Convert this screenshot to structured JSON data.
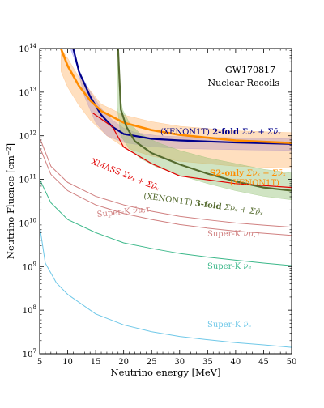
{
  "chart_data": {
    "type": "line",
    "title": "",
    "xlabel": "Neutrino energy [MeV]",
    "ylabel": "Neutrino Fluence [cm⁻²]",
    "xlim": [
      5,
      50
    ],
    "ylim": [
      10000000.0,
      100000000000000.0
    ],
    "yscale": "log",
    "grid": false,
    "x_ticks": [
      "5",
      "10",
      "15",
      "20",
      "25",
      "30",
      "35",
      "40",
      "45",
      "50"
    ],
    "y_ticks": [
      {
        "base": "10",
        "exp": "7"
      },
      {
        "base": "10",
        "exp": "8"
      },
      {
        "base": "10",
        "exp": "9"
      },
      {
        "base": "10",
        "exp": "10"
      },
      {
        "base": "10",
        "exp": "11"
      },
      {
        "base": "10",
        "exp": "12"
      },
      {
        "base": "10",
        "exp": "13"
      },
      {
        "base": "10",
        "exp": "14"
      }
    ],
    "annotation_title": [
      "GW170817",
      "Nuclear Recoils"
    ],
    "bands": [
      {
        "color": "#8080ff",
        "upper": [
          [
            10.5,
            100000000000000.0
          ],
          [
            12,
            30000000000000.0
          ],
          [
            14,
            10500000000000.0
          ],
          [
            16,
            4200000000000.0
          ],
          [
            18,
            2300000000000.0
          ],
          [
            20,
            1500000000000.0
          ],
          [
            22,
            1200000000000.0
          ],
          [
            26,
            1000000000000.0
          ],
          [
            30,
            950000000000.0
          ],
          [
            40,
            900000000000.0
          ],
          [
            50,
            850000000000.0
          ]
        ],
        "lower": [
          [
            11,
            100000000000000.0
          ],
          [
            12,
            25000000000000.0
          ],
          [
            13,
            8000000000000.0
          ],
          [
            14,
            4000000000000.0
          ],
          [
            15,
            2000000000000.0
          ],
          [
            17,
            1000000000000.0
          ],
          [
            20,
            700000000000.0
          ],
          [
            25,
            560000000000.0
          ],
          [
            30,
            510000000000.0
          ],
          [
            40,
            480000000000.0
          ],
          [
            50,
            460000000000.0
          ]
        ]
      },
      {
        "color": "#ffb366",
        "upper": [
          [
            8.8,
            100000000000000.0
          ],
          [
            10,
            60000000000000.0
          ],
          [
            12,
            22000000000000.0
          ],
          [
            14,
            11000000000000.0
          ],
          [
            16,
            5300000000000.0
          ],
          [
            20,
            3000000000000.0
          ],
          [
            25,
            2100000000000.0
          ],
          [
            30,
            1650000000000.0
          ],
          [
            40,
            1300000000000.0
          ],
          [
            50,
            1180000000000.0
          ]
        ],
        "lower": [
          [
            8.8,
            30000000000000.0
          ],
          [
            10,
            13000000000000.0
          ],
          [
            12,
            5000000000000.0
          ],
          [
            14,
            2300000000000.0
          ],
          [
            17,
            1000000000000.0
          ],
          [
            20,
            550000000000.0
          ],
          [
            25,
            340000000000.0
          ],
          [
            30,
            260000000000.0
          ],
          [
            40,
            200000000000.0
          ],
          [
            50,
            180000000000.0
          ]
        ]
      },
      {
        "color": "#8fbf6f",
        "upper": [
          [
            19,
            100000000000000.0
          ],
          [
            19.3,
            10000000000000.0
          ],
          [
            19.8,
            4000000000000.0
          ],
          [
            21,
            2000000000000.0
          ],
          [
            23,
            1100000000000.0
          ],
          [
            26,
            700000000000.0
          ],
          [
            30,
            460000000000.0
          ],
          [
            35,
            310000000000.0
          ],
          [
            40,
            230000000000.0
          ],
          [
            45,
            170000000000.0
          ],
          [
            50,
            140000000000.0
          ]
        ],
        "lower": [
          [
            18.8,
            5000000000000.0
          ],
          [
            19.5,
            1000000000000.0
          ],
          [
            21,
            500000000000.0
          ],
          [
            23,
            300000000000.0
          ],
          [
            26,
            190000000000.0
          ],
          [
            30,
            125000000000.0
          ],
          [
            35,
            80000000000.0
          ],
          [
            40,
            55000000000.0
          ],
          [
            45,
            41000000000.0
          ],
          [
            50,
            34000000000.0
          ]
        ]
      }
    ],
    "series": [
      {
        "name": "XENON1T 2-fold",
        "color": "#00008b",
        "points": [
          [
            11,
            100000000000000.0
          ],
          [
            12,
            30000000000000.0
          ],
          [
            14,
            8000000000000.0
          ],
          [
            16,
            3000000000000.0
          ],
          [
            18,
            1600000000000.0
          ],
          [
            20,
            1100000000000.0
          ],
          [
            25,
            850000000000.0
          ],
          [
            30,
            780000000000.0
          ],
          [
            40,
            700000000000.0
          ],
          [
            50,
            650000000000.0
          ]
        ]
      },
      {
        "name": "XENON1T S2-only",
        "color": "#ff8c00",
        "points": [
          [
            8.8,
            100000000000000.0
          ],
          [
            10,
            40000000000000.0
          ],
          [
            12,
            14000000000000.0
          ],
          [
            14,
            6500000000000.0
          ],
          [
            16,
            3700000000000.0
          ],
          [
            20,
            2000000000000.0
          ],
          [
            25,
            1350000000000.0
          ],
          [
            30,
            1050000000000.0
          ],
          [
            40,
            780000000000.0
          ],
          [
            50,
            680000000000.0
          ]
        ]
      },
      {
        "name": "XENON1T 3-fold",
        "color": "#556b2f",
        "points": [
          [
            19,
            100000000000000.0
          ],
          [
            19.5,
            4000000000000.0
          ],
          [
            20.5,
            1600000000000.0
          ],
          [
            22,
            750000000000.0
          ],
          [
            25,
            400000000000.0
          ],
          [
            30,
            220000000000.0
          ],
          [
            35,
            135000000000.0
          ],
          [
            40,
            90000000000.0
          ],
          [
            45,
            65000000000.0
          ],
          [
            50,
            55000000000.0
          ]
        ]
      },
      {
        "name": "XMASS",
        "color": "#e00000",
        "points": [
          [
            14.5,
            3300000000000.0
          ],
          [
            18,
            1600000000000.0
          ],
          [
            20,
            550000000000.0
          ],
          [
            25,
            230000000000.0
          ],
          [
            30,
            120000000000.0
          ],
          [
            40,
            80000000000.0
          ],
          [
            50,
            65000000000.0
          ]
        ]
      },
      {
        "name": "Super-K nu_mu,tau bar",
        "color": "#d08080",
        "points": [
          [
            5,
            900000000000.0
          ],
          [
            7,
            200000000000.0
          ],
          [
            10,
            85000000000.0
          ],
          [
            15,
            41000000000.0
          ],
          [
            20,
            26000000000.0
          ],
          [
            25,
            18500000000.0
          ],
          [
            30,
            14200000000.0
          ],
          [
            35,
            11800000000.0
          ],
          [
            40,
            10000000000.0
          ],
          [
            45,
            8900000000.0
          ],
          [
            50,
            8000000000.0
          ]
        ]
      },
      {
        "name": "Super-K nu_mu,tau",
        "color": "#d08080",
        "points": [
          [
            5,
            550000000000.0
          ],
          [
            7,
            130000000000.0
          ],
          [
            10,
            55000000000.0
          ],
          [
            15,
            26000000000.0
          ],
          [
            20,
            16500000000.0
          ],
          [
            25,
            12000000000.0
          ],
          [
            30,
            9200000000.0
          ],
          [
            35,
            7600000000.0
          ],
          [
            40,
            6500000000.0
          ],
          [
            45,
            5800000000.0
          ],
          [
            50,
            5200000000.0
          ]
        ]
      },
      {
        "name": "Super-K nu_e",
        "color": "#3cb88a",
        "points": [
          [
            5,
            100000000000.0
          ],
          [
            7,
            29000000000.0
          ],
          [
            10,
            12000000000.0
          ],
          [
            15,
            6000000000.0
          ],
          [
            20,
            3500000000.0
          ],
          [
            25,
            2600000000.0
          ],
          [
            30,
            2000000000.0
          ],
          [
            35,
            1650000000.0
          ],
          [
            40,
            1400000000.0
          ],
          [
            45,
            1200000000.0
          ],
          [
            50,
            1050000000.0
          ]
        ]
      },
      {
        "name": "Super-K nu_e bar",
        "color": "#6fc8e8",
        "points": [
          [
            5,
            8500000000.0
          ],
          [
            6,
            1200000000.0
          ],
          [
            8,
            420000000.0
          ],
          [
            10,
            230000000.0
          ],
          [
            15,
            82000000.0
          ],
          [
            20,
            46000000.0
          ],
          [
            25,
            32000000.0
          ],
          [
            30,
            25000000.0
          ],
          [
            35,
            21000000.0
          ],
          [
            40,
            18000000.0
          ],
          [
            45,
            16000000.0
          ],
          [
            50,
            14000000.0
          ]
        ]
      }
    ],
    "labels": [
      {
        "text": "(XENON1T) ",
        "bold": "2-fold ",
        "math": "Σνₓ + Σν̄ₓ",
        "color": "#00008b"
      },
      {
        "text": "",
        "bold": "S2-only ",
        "math": "Σνₓ + Σν̄ₓ",
        "color": "#ff8c00"
      },
      {
        "text": "(XENON1T)",
        "bold": "",
        "math": "",
        "color": "#ff8c00"
      },
      {
        "text": "XMASS ",
        "bold": "",
        "math": "Σνₓ + Σν̄ₓ",
        "color": "#e00000"
      },
      {
        "text": "(XENON1T) ",
        "bold": "3-fold ",
        "math": "Σνₓ + Σν̄ₓ",
        "color": "#556b2f"
      },
      {
        "text": "Super-K ",
        "bold": "",
        "math": "ν̄μ,τ",
        "color": "#d08080"
      },
      {
        "text": "Super-K ",
        "bold": "",
        "math": "νμ,τ",
        "color": "#d08080"
      },
      {
        "text": "Super-K ",
        "bold": "",
        "math": "νₑ",
        "color": "#3cb88a"
      },
      {
        "text": "Super-K ",
        "bold": "",
        "math": "ν̄ₑ",
        "color": "#6fc8e8"
      }
    ]
  }
}
